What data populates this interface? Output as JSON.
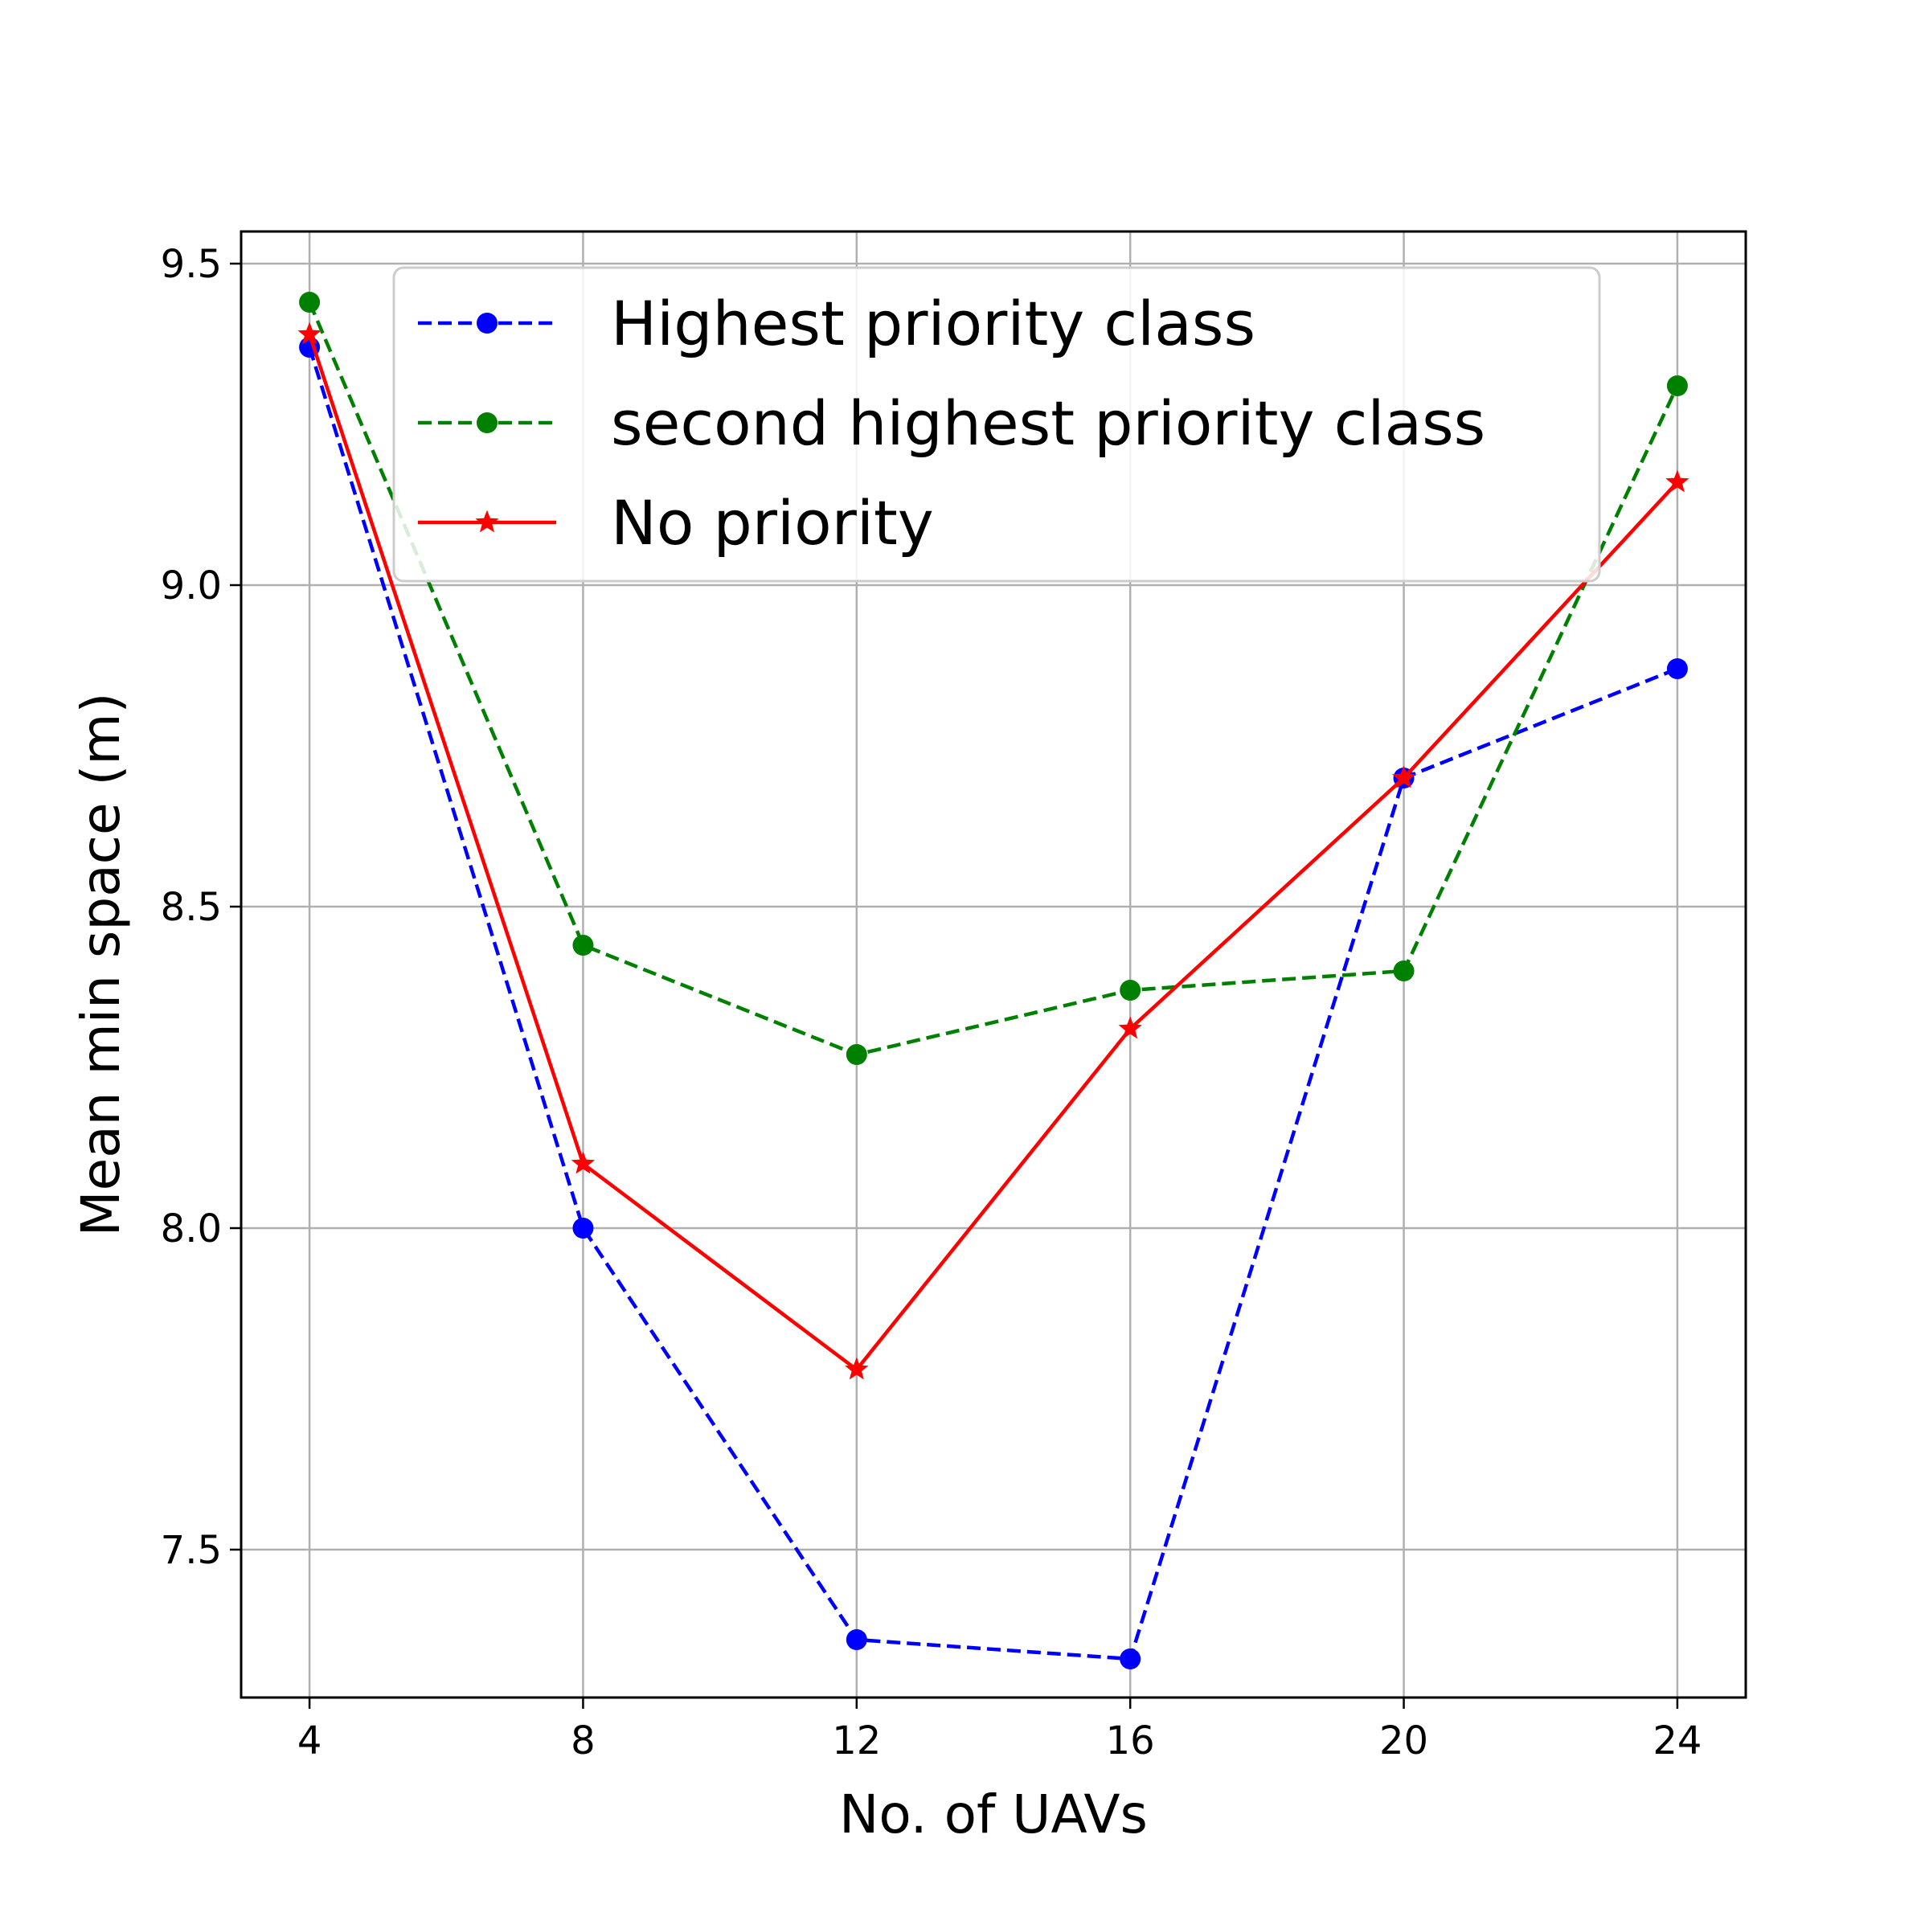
{
  "chart_data": {
    "type": "line",
    "title": "",
    "xlabel": "No. of UAVs",
    "ylabel": "Mean min space (m)",
    "x": [
      4,
      8,
      12,
      16,
      20,
      24
    ],
    "xticks": [
      "4",
      "8",
      "12",
      "16",
      "20",
      "24"
    ],
    "yticks": [
      "7.5",
      "8.0",
      "8.5",
      "9.0",
      "9.5"
    ],
    "xlim": [
      3,
      25
    ],
    "ylim": [
      7.27,
      9.55
    ],
    "grid": true,
    "legend_position": "top",
    "series": [
      {
        "name": "Highest priority class",
        "values": [
          9.37,
          8.0,
          7.36,
          7.33,
          8.7,
          8.87
        ],
        "color": "#0000ff",
        "line_style": "dashed",
        "marker": "circle"
      },
      {
        "name": "second highest priority class",
        "values": [
          9.44,
          8.44,
          8.27,
          8.37,
          8.4,
          9.31
        ],
        "color": "#008000",
        "line_style": "dashed",
        "marker": "circle"
      },
      {
        "name": "No priority",
        "values": [
          9.39,
          8.1,
          7.78,
          8.31,
          8.7,
          9.16
        ],
        "color": "#ff0000",
        "line_style": "solid",
        "marker": "star"
      }
    ]
  }
}
